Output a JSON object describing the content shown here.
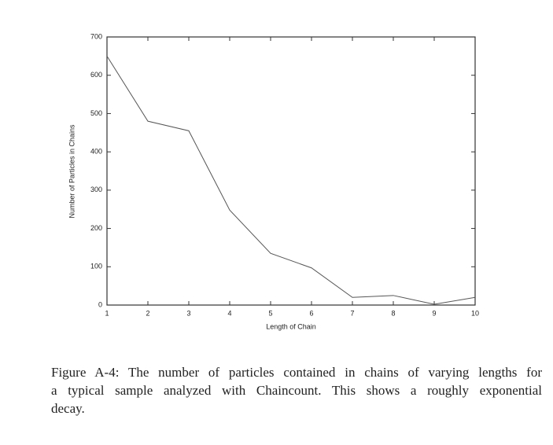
{
  "chart_data": {
    "type": "line",
    "x_label": "Length of Chain",
    "y_label": "Number of Particles in Chains",
    "x": [
      1,
      2,
      3,
      4,
      5,
      6,
      7,
      8,
      9,
      10
    ],
    "series": [
      {
        "color": "#555555",
        "values": [
          650,
          480,
          455,
          248,
          135,
          97,
          20,
          25,
          2,
          20
        ]
      }
    ],
    "xlim": [
      1,
      10
    ],
    "xticks": [
      1,
      2,
      3,
      4,
      5,
      6,
      7,
      8,
      9,
      10
    ],
    "ylim": [
      0,
      700
    ],
    "yticks": [
      0,
      100,
      200,
      300,
      400,
      500,
      600,
      700
    ],
    "grid": false,
    "caption_lines": [
      "Figure A-4:  The number of particles contained in chains of varying lengths for",
      "a typical sample analyzed with Chaincount.  This shows a roughly exponential",
      "decay."
    ]
  }
}
